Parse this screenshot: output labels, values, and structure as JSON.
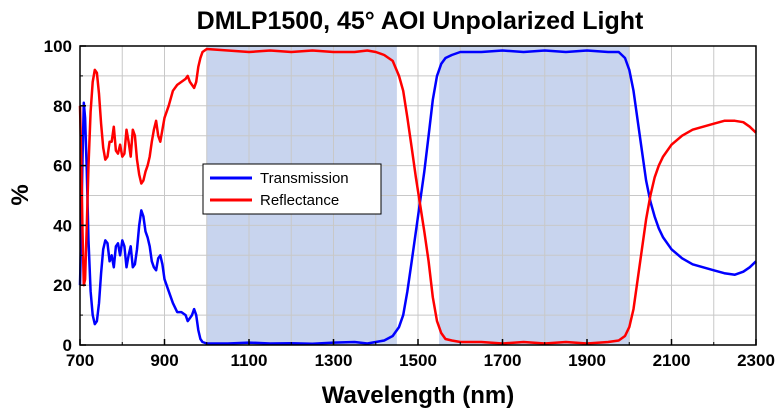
{
  "chart_data": {
    "type": "line",
    "title": "DMLP1500, 45° AOI Unpolarized Light",
    "xlabel": "Wavelength (nm)",
    "ylabel": "%",
    "xlim": [
      700,
      2300
    ],
    "ylim": [
      0,
      100
    ],
    "x_ticks": [
      700,
      900,
      1100,
      1300,
      1500,
      1700,
      1900,
      2100,
      2300
    ],
    "y_ticks": [
      0,
      20,
      40,
      60,
      80,
      100
    ],
    "x_grid_step": 100,
    "y_grid_step": 10,
    "grid": true,
    "legend_position": "center-left",
    "shaded_bands": [
      [
        1000,
        1450
      ],
      [
        1550,
        2000
      ]
    ],
    "colors": {
      "transmission": "#0000ff",
      "reflectance": "#ff0000",
      "band_fill": "#c8d4ee",
      "grid": "#c8c8c8"
    },
    "series": [
      {
        "name": "Transmission",
        "color": "#0000ff",
        "points": [
          [
            700,
            20
          ],
          [
            703,
            40
          ],
          [
            706,
            62
          ],
          [
            709,
            81
          ],
          [
            712,
            76
          ],
          [
            716,
            58
          ],
          [
            720,
            35
          ],
          [
            725,
            18
          ],
          [
            730,
            10
          ],
          [
            735,
            7
          ],
          [
            740,
            8
          ],
          [
            745,
            14
          ],
          [
            750,
            24
          ],
          [
            755,
            32
          ],
          [
            760,
            35
          ],
          [
            765,
            34
          ],
          [
            770,
            28
          ],
          [
            775,
            30
          ],
          [
            780,
            26
          ],
          [
            785,
            33
          ],
          [
            790,
            34
          ],
          [
            795,
            30
          ],
          [
            800,
            35
          ],
          [
            805,
            33
          ],
          [
            810,
            26
          ],
          [
            815,
            30
          ],
          [
            820,
            33
          ],
          [
            825,
            26
          ],
          [
            830,
            27
          ],
          [
            835,
            32
          ],
          [
            840,
            40
          ],
          [
            845,
            45
          ],
          [
            850,
            43
          ],
          [
            855,
            38
          ],
          [
            860,
            36
          ],
          [
            865,
            33
          ],
          [
            870,
            28
          ],
          [
            875,
            26
          ],
          [
            880,
            25
          ],
          [
            885,
            29
          ],
          [
            890,
            30
          ],
          [
            895,
            27
          ],
          [
            900,
            22
          ],
          [
            910,
            18
          ],
          [
            920,
            14
          ],
          [
            930,
            11
          ],
          [
            940,
            11
          ],
          [
            950,
            10
          ],
          [
            955,
            8
          ],
          [
            960,
            9
          ],
          [
            965,
            10
          ],
          [
            970,
            12
          ],
          [
            975,
            10
          ],
          [
            980,
            5
          ],
          [
            985,
            2
          ],
          [
            990,
            1
          ],
          [
            1000,
            0.5
          ],
          [
            1050,
            0.5
          ],
          [
            1100,
            0.8
          ],
          [
            1150,
            0.5
          ],
          [
            1200,
            0.6
          ],
          [
            1250,
            0.4
          ],
          [
            1300,
            0.8
          ],
          [
            1350,
            1
          ],
          [
            1380,
            0.5
          ],
          [
            1400,
            1
          ],
          [
            1420,
            1.5
          ],
          [
            1440,
            3
          ],
          [
            1455,
            6
          ],
          [
            1465,
            10
          ],
          [
            1475,
            18
          ],
          [
            1485,
            28
          ],
          [
            1495,
            38
          ],
          [
            1505,
            48
          ],
          [
            1515,
            58
          ],
          [
            1525,
            70
          ],
          [
            1535,
            82
          ],
          [
            1545,
            90
          ],
          [
            1555,
            94
          ],
          [
            1565,
            96
          ],
          [
            1580,
            97
          ],
          [
            1600,
            98
          ],
          [
            1650,
            98
          ],
          [
            1700,
            98.5
          ],
          [
            1750,
            98
          ],
          [
            1800,
            98.5
          ],
          [
            1850,
            98
          ],
          [
            1900,
            98.5
          ],
          [
            1950,
            98
          ],
          [
            1975,
            98
          ],
          [
            1990,
            96
          ],
          [
            2000,
            92
          ],
          [
            2010,
            85
          ],
          [
            2020,
            75
          ],
          [
            2030,
            65
          ],
          [
            2040,
            55
          ],
          [
            2050,
            48
          ],
          [
            2060,
            43
          ],
          [
            2070,
            39
          ],
          [
            2080,
            36
          ],
          [
            2100,
            32
          ],
          [
            2125,
            29
          ],
          [
            2150,
            27
          ],
          [
            2175,
            26
          ],
          [
            2200,
            25
          ],
          [
            2225,
            24
          ],
          [
            2250,
            23.5
          ],
          [
            2270,
            24.5
          ],
          [
            2285,
            26
          ],
          [
            2300,
            28
          ]
        ]
      },
      {
        "name": "Reflectance",
        "color": "#ff0000",
        "points": [
          [
            700,
            80
          ],
          [
            703,
            62
          ],
          [
            706,
            38
          ],
          [
            709,
            20
          ],
          [
            712,
            22
          ],
          [
            716,
            40
          ],
          [
            720,
            60
          ],
          [
            725,
            78
          ],
          [
            730,
            88
          ],
          [
            735,
            92
          ],
          [
            740,
            91
          ],
          [
            745,
            84
          ],
          [
            750,
            74
          ],
          [
            755,
            66
          ],
          [
            760,
            62
          ],
          [
            765,
            63
          ],
          [
            770,
            68
          ],
          [
            775,
            68
          ],
          [
            780,
            73
          ],
          [
            785,
            65
          ],
          [
            790,
            64
          ],
          [
            795,
            67
          ],
          [
            800,
            63
          ],
          [
            805,
            64
          ],
          [
            810,
            72
          ],
          [
            815,
            68
          ],
          [
            820,
            63
          ],
          [
            825,
            72
          ],
          [
            830,
            70
          ],
          [
            835,
            62
          ],
          [
            840,
            57
          ],
          [
            845,
            54
          ],
          [
            850,
            55
          ],
          [
            855,
            58
          ],
          [
            860,
            60
          ],
          [
            865,
            63
          ],
          [
            870,
            68
          ],
          [
            875,
            72
          ],
          [
            880,
            75
          ],
          [
            885,
            70
          ],
          [
            890,
            68
          ],
          [
            895,
            72
          ],
          [
            900,
            76
          ],
          [
            910,
            80
          ],
          [
            920,
            85
          ],
          [
            930,
            87
          ],
          [
            940,
            88
          ],
          [
            950,
            89
          ],
          [
            955,
            90
          ],
          [
            960,
            88
          ],
          [
            965,
            87
          ],
          [
            970,
            86
          ],
          [
            975,
            88
          ],
          [
            980,
            93
          ],
          [
            985,
            96
          ],
          [
            990,
            98
          ],
          [
            1000,
            99
          ],
          [
            1050,
            98.5
          ],
          [
            1100,
            98
          ],
          [
            1150,
            98.5
          ],
          [
            1200,
            98
          ],
          [
            1250,
            98.5
          ],
          [
            1300,
            98
          ],
          [
            1350,
            98
          ],
          [
            1380,
            98.5
          ],
          [
            1400,
            98
          ],
          [
            1420,
            97
          ],
          [
            1440,
            95
          ],
          [
            1455,
            90
          ],
          [
            1465,
            85
          ],
          [
            1475,
            76
          ],
          [
            1485,
            66
          ],
          [
            1495,
            56
          ],
          [
            1505,
            47
          ],
          [
            1515,
            38
          ],
          [
            1525,
            28
          ],
          [
            1535,
            16
          ],
          [
            1545,
            8
          ],
          [
            1555,
            4
          ],
          [
            1565,
            2
          ],
          [
            1580,
            1.5
          ],
          [
            1600,
            1
          ],
          [
            1650,
            1
          ],
          [
            1700,
            0.5
          ],
          [
            1750,
            1
          ],
          [
            1800,
            0.5
          ],
          [
            1850,
            1
          ],
          [
            1900,
            0.5
          ],
          [
            1950,
            1
          ],
          [
            1975,
            1.5
          ],
          [
            1990,
            3
          ],
          [
            2000,
            6
          ],
          [
            2010,
            12
          ],
          [
            2020,
            22
          ],
          [
            2030,
            32
          ],
          [
            2040,
            42
          ],
          [
            2050,
            50
          ],
          [
            2060,
            56
          ],
          [
            2070,
            60
          ],
          [
            2080,
            63
          ],
          [
            2100,
            67
          ],
          [
            2125,
            70
          ],
          [
            2150,
            72
          ],
          [
            2175,
            73
          ],
          [
            2200,
            74
          ],
          [
            2225,
            75
          ],
          [
            2250,
            75
          ],
          [
            2270,
            74.5
          ],
          [
            2285,
            73
          ],
          [
            2300,
            71
          ]
        ]
      }
    ]
  }
}
